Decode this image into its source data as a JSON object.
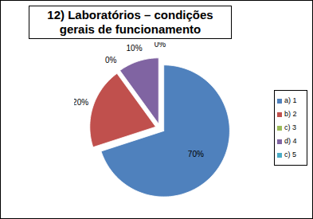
{
  "chart_data": {
    "type": "pie",
    "title": "12) Laboratórios – condições gerais de funcionamento",
    "categories": [
      "a) 1",
      "b) 2",
      "c) 3",
      "d) 4",
      "c) 5"
    ],
    "values": [
      70,
      20,
      0,
      10,
      0
    ],
    "value_labels": [
      "70%",
      "20%",
      "0%",
      "10%",
      "0%"
    ],
    "colors": [
      "#4f81bd",
      "#c0504d",
      "#9bbb59",
      "#8064a2",
      "#4bacc6"
    ],
    "data_labels": true,
    "legend": "right"
  }
}
